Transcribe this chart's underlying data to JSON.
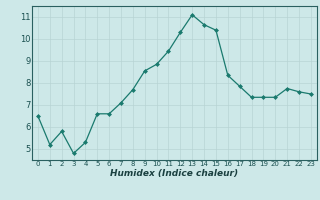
{
  "x": [
    0,
    1,
    2,
    3,
    4,
    5,
    6,
    7,
    8,
    9,
    10,
    11,
    12,
    13,
    14,
    15,
    16,
    17,
    18,
    19,
    20,
    21,
    22,
    23
  ],
  "y": [
    6.5,
    5.2,
    5.8,
    4.8,
    5.3,
    6.6,
    6.6,
    7.1,
    7.7,
    8.55,
    8.85,
    9.45,
    10.3,
    11.1,
    10.65,
    10.4,
    8.35,
    7.85,
    7.35,
    7.35,
    7.35,
    7.75,
    7.6,
    7.5
  ],
  "xlabel": "Humidex (Indice chaleur)",
  "ylim": [
    4.5,
    11.5
  ],
  "xlim": [
    -0.5,
    23.5
  ],
  "yticks": [
    5,
    6,
    7,
    8,
    9,
    10,
    11
  ],
  "xticks": [
    0,
    1,
    2,
    3,
    4,
    5,
    6,
    7,
    8,
    9,
    10,
    11,
    12,
    13,
    14,
    15,
    16,
    17,
    18,
    19,
    20,
    21,
    22,
    23
  ],
  "line_color": "#1a7a6e",
  "marker_color": "#1a7a6e",
  "bg_color": "#cde8e8",
  "grid_color": "#b8d4d4",
  "axis_color": "#2a6060",
  "tick_color": "#1a5050",
  "label_color": "#1a4040",
  "title": ""
}
